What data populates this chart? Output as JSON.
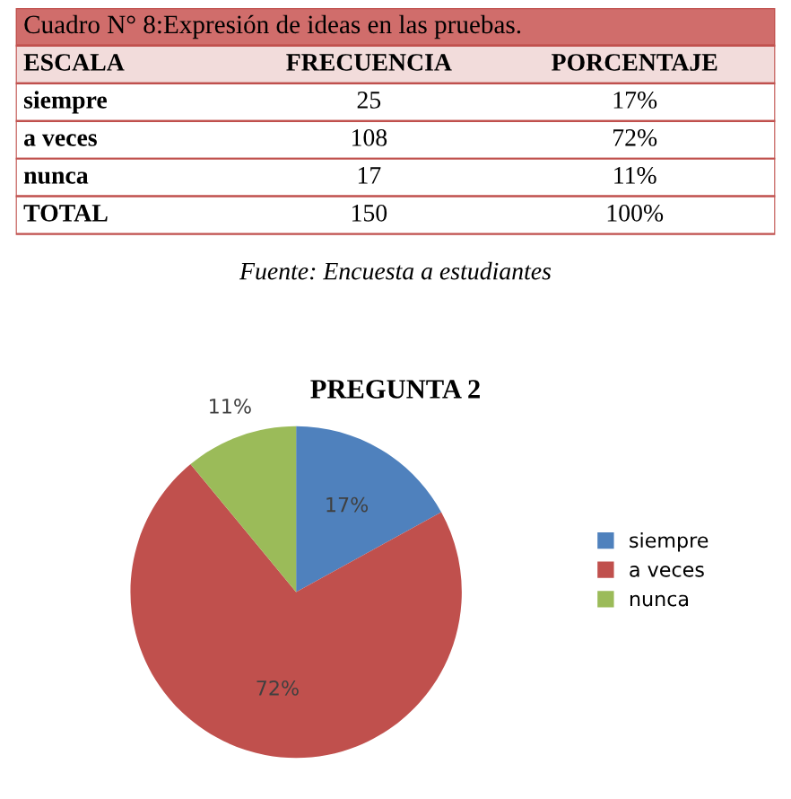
{
  "chart_data": [
    {
      "type": "other",
      "title": "Cuadro N° 8:Expresión de ideas en las pruebas.",
      "annotations": [
        "ESCALA",
        "FRECUENCIA",
        "PORCENTAJE",
        "siempre",
        "25",
        "17%",
        "a veces",
        "108",
        "72%",
        "nunca",
        "17",
        "11%",
        "TOTAL",
        "150",
        "100%",
        "Fuente: Encuesta a estudiantes"
      ]
    },
    {
      "type": "pie",
      "title": "PREGUNTA 2",
      "categories": [
        "siempre",
        "a veces",
        "nunca"
      ],
      "values": [
        17,
        72,
        11
      ],
      "colors": [
        "#4f81bd",
        "#c0504d",
        "#9bbb59"
      ],
      "value_labels": [
        "17%",
        "72%",
        "11%"
      ],
      "legend": "right"
    }
  ]
}
